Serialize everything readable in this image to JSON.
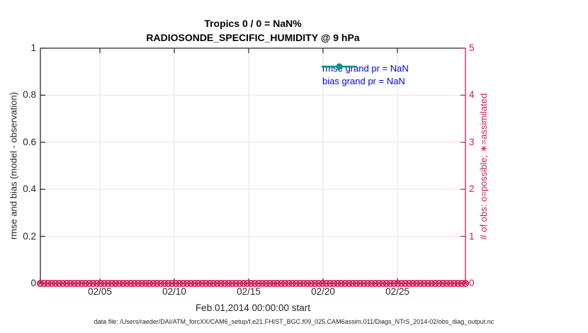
{
  "title": {
    "line1": "Tropics 0 / 0 = NaN%",
    "line2": "RADIOSONDE_SPECIFIC_HUMIDITY @ 9 hPa"
  },
  "axes": {
    "left": {
      "label": "rmse and bias (model - observation)",
      "tick_labels": [
        "0",
        "0.2",
        "0.4",
        "0.6",
        "0.8",
        "1"
      ],
      "color": "#262626"
    },
    "right": {
      "label": "# of obs: o=possible; ∗=assimilated",
      "tick_labels": [
        "0",
        "1",
        "2",
        "3",
        "4",
        "5"
      ],
      "color": "#cc1a59"
    },
    "x": {
      "label": "Feb.01,2014 00:00:00 start",
      "tick_labels": [
        "02/05",
        "02/10",
        "02/15",
        "02/20",
        "02/25"
      ]
    }
  },
  "legend": {
    "text_color": "#0000ee",
    "items": [
      {
        "label": "rmse grand pr = NaN",
        "color": "#000000",
        "marker": "filled-circle"
      },
      {
        "label": "bias grand pr = NaN",
        "color": "#0f9186",
        "marker": "filled-circle"
      }
    ]
  },
  "footer": "data file: /Users/raeder/DAI/ATM_forcXX/CAM6_setup/f.e21.FHIST_BGC.f09_025.CAM6assim.011/Diags_NTrS_2014-02/obs_diag_output.nc",
  "colors": {
    "obs_marker": "#cc1a59",
    "axis_dark": "#262626",
    "grid_gray": "#e0e0e0",
    "grid_pink": "#f6dde6",
    "legend_text": "#0000ee",
    "bias_teal": "#0f9186"
  },
  "chart_data": {
    "type": "line",
    "title": "Tropics 0 / 0 = NaN%",
    "subtitle": "RADIOSONDE_SPECIFIC_HUMIDITY @ 9 hPa",
    "xlabel": "Feb.01,2014 00:00:00 start",
    "ylabel_left": "rmse and bias (model - observation)",
    "ylabel_right": "# of obs: o=possible; ∗=assimilated",
    "x_axis": {
      "start": "02/01",
      "end": "03/01",
      "tick_labels": [
        "02/05",
        "02/10",
        "02/15",
        "02/20",
        "02/25"
      ]
    },
    "ylim_left": [
      0,
      1
    ],
    "ylim_right": [
      0,
      5
    ],
    "grid": true,
    "legend_position": "upper-right-inside",
    "series": [
      {
        "name": "rmse grand pr = NaN",
        "axis": "left",
        "color": "#000000",
        "marker": "filled-circle",
        "values": [],
        "note": "no data plotted (all NaN)"
      },
      {
        "name": "bias grand pr = NaN",
        "axis": "left",
        "color": "#0f9186",
        "marker": "filled-circle",
        "values": [],
        "note": "no data plotted (all NaN)"
      },
      {
        "name": "# of obs possible",
        "axis": "right",
        "color": "#cc1a59",
        "marker": "o",
        "constant_value": 0,
        "n_points_approx": 114
      },
      {
        "name": "# of obs assimilated",
        "axis": "right",
        "color": "#cc1a59",
        "marker": "∗",
        "constant_value": 0,
        "n_points_approx": 114
      }
    ]
  }
}
